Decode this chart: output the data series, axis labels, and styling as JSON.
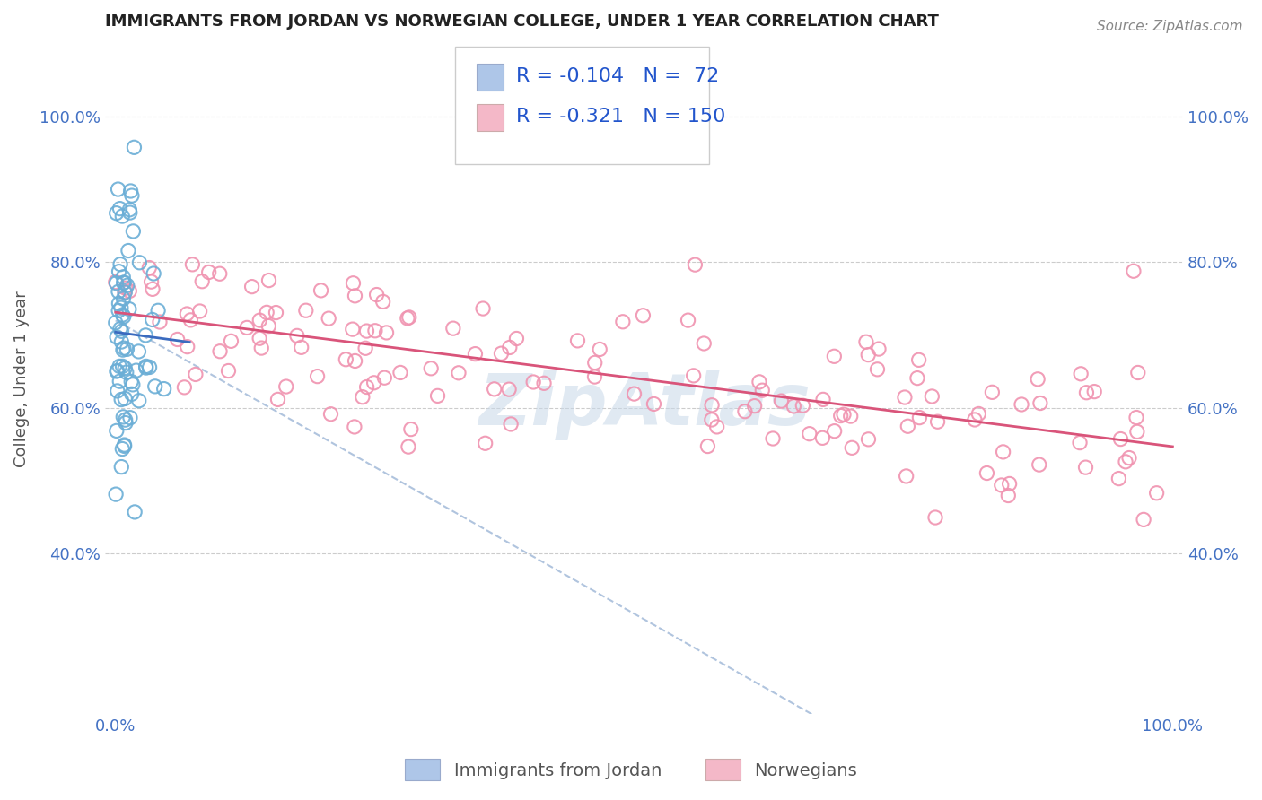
{
  "title": "IMMIGRANTS FROM JORDAN VS NORWEGIAN COLLEGE, UNDER 1 YEAR CORRELATION CHART",
  "source": "Source: ZipAtlas.com",
  "ylabel": "College, Under 1 year",
  "legend_jordan": {
    "R": "-0.104",
    "N": "72",
    "color": "#aec6e8",
    "line_color": "#3a6bbf"
  },
  "legend_norwegian": {
    "R": "-0.321",
    "N": "150",
    "color": "#f4b8c8",
    "line_color": "#d9547a"
  },
  "jordan_scatter_color": "#6baed6",
  "norwegian_scatter_color": "#f093b0",
  "grid_color": "#cccccc",
  "background_color": "#ffffff",
  "dashed_line_color": "#b0c4de",
  "watermark_color": "#c8d8e8"
}
